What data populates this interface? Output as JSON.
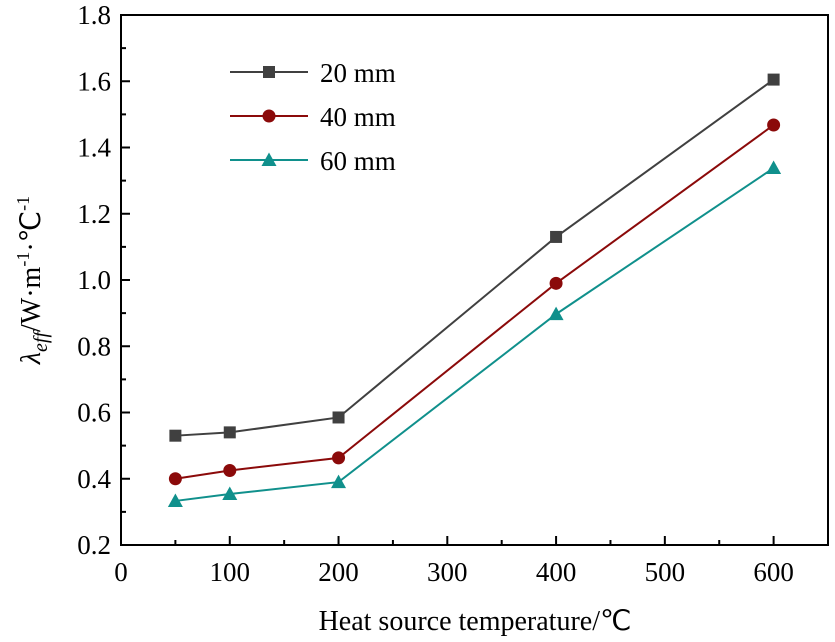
{
  "chart_data": {
    "type": "line",
    "title": "",
    "xlabel": "Heat source temperature/℃",
    "ylabel_main": "λ",
    "ylabel_sub": "eff",
    "ylabel_rest": "/W·m",
    "ylabel_sup1": "-1",
    "ylabel_unit": "·℃",
    "ylabel_sup2": "-1",
    "xlim": [
      0,
      650
    ],
    "ylim": [
      0.2,
      1.8
    ],
    "xticks": [
      "0",
      "100",
      "200",
      "300",
      "400",
      "500",
      "600"
    ],
    "yticks": [
      "0.2",
      "0.4",
      "0.6",
      "0.8",
      "1.0",
      "1.2",
      "1.4",
      "1.6",
      "1.8"
    ],
    "legend_position": "top-left",
    "x": [
      50,
      100,
      200,
      400,
      600
    ],
    "series": [
      {
        "name": "20 mm",
        "marker": "square",
        "color": "#404040",
        "values": [
          0.53,
          0.54,
          0.585,
          1.13,
          1.605
        ]
      },
      {
        "name": "40 mm",
        "marker": "circle",
        "color": "#8b0a0a",
        "values": [
          0.4,
          0.425,
          0.463,
          0.99,
          1.468
        ]
      },
      {
        "name": "60 mm",
        "marker": "triangle",
        "color": "#10908c",
        "values": [
          0.333,
          0.354,
          0.39,
          0.897,
          1.338
        ]
      }
    ]
  }
}
